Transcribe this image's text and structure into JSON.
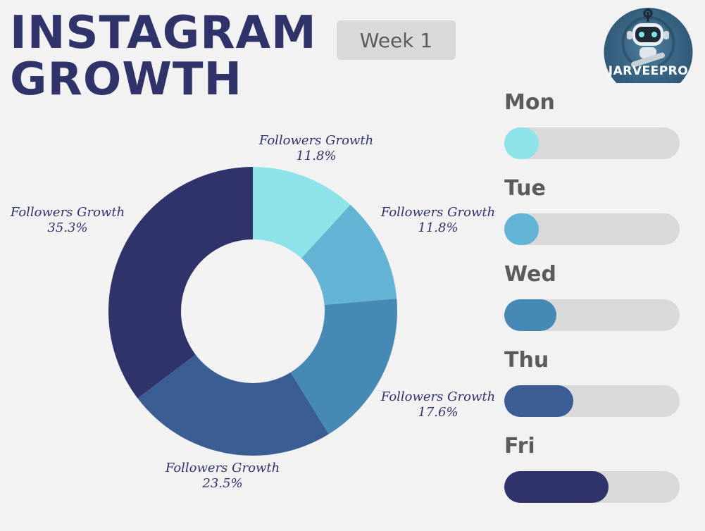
{
  "header": {
    "title_line1": "INSTAGRAM",
    "title_line2": "GROWTH",
    "week_label": "Week 1"
  },
  "logo": {
    "text": "JARVEEPRO",
    "icon": "robot-icon"
  },
  "chart_data": [
    {
      "type": "pie",
      "style": "donut",
      "categories": [
        "Mon",
        "Tue",
        "Wed",
        "Thu",
        "Fri"
      ],
      "labels": [
        "Followers Growth",
        "Followers Growth",
        "Followers Growth",
        "Followers Growth",
        "Followers Growth"
      ],
      "values": [
        11.8,
        11.8,
        17.6,
        23.5,
        35.3
      ],
      "value_labels": [
        "11.8%",
        "11.8%",
        "17.6%",
        "23.5%",
        "35.3%"
      ],
      "colors": [
        "#8de3e8",
        "#63b4d4",
        "#4789b5",
        "#3a5d94",
        "#30336a"
      ]
    },
    {
      "type": "bar",
      "orientation": "horizontal",
      "categories": [
        "Mon",
        "Tue",
        "Wed",
        "Thu",
        "Fri"
      ],
      "values": [
        11.8,
        11.8,
        17.6,
        23.5,
        35.3
      ],
      "xlim": [
        0,
        59.5
      ],
      "colors": [
        "#8de3e8",
        "#63b4d4",
        "#4789b5",
        "#3a5d94",
        "#30336a"
      ],
      "track_color": "#d9d9d9"
    }
  ]
}
